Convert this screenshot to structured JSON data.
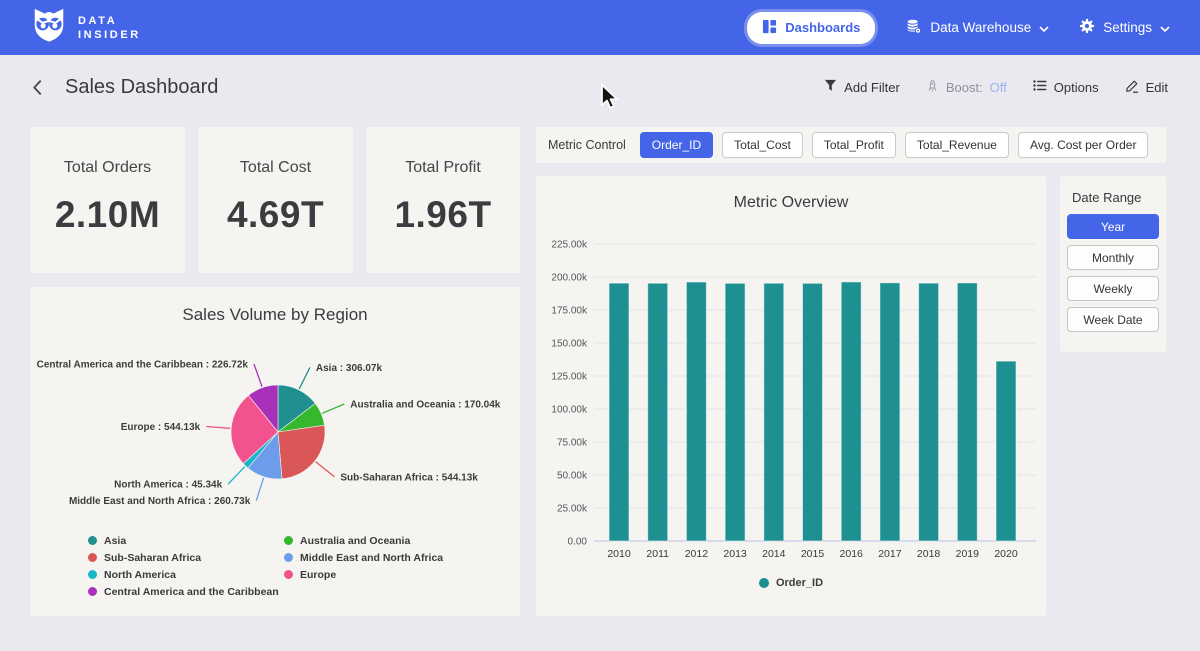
{
  "navbar": {
    "logo_line1": "DATA",
    "logo_line2": "INSIDER",
    "dashboards_label": "Dashboards",
    "data_warehouse_label": "Data Warehouse",
    "settings_label": "Settings"
  },
  "header": {
    "title": "Sales Dashboard",
    "add_filter_label": "Add Filter",
    "boost_label": "Boost:",
    "boost_state": "Off",
    "options_label": "Options",
    "edit_label": "Edit"
  },
  "kpis": [
    {
      "label": "Total Orders",
      "value": "2.10M"
    },
    {
      "label": "Total Cost",
      "value": "4.69T"
    },
    {
      "label": "Total Profit",
      "value": "1.96T"
    }
  ],
  "metric_control": {
    "label": "Metric Control",
    "options": [
      {
        "label": "Order_ID",
        "selected": true
      },
      {
        "label": "Total_Cost",
        "selected": false
      },
      {
        "label": "Total_Profit",
        "selected": false
      },
      {
        "label": "Total_Revenue",
        "selected": false
      },
      {
        "label": "Avg. Cost per Order",
        "selected": false
      }
    ]
  },
  "date_range": {
    "label": "Date Range",
    "options": [
      {
        "label": "Year",
        "selected": true
      },
      {
        "label": "Monthly",
        "selected": false
      },
      {
        "label": "Weekly",
        "selected": false
      },
      {
        "label": "Week Date",
        "selected": false
      }
    ]
  },
  "colors": {
    "accent_blue": "#4565e8",
    "page_bg": "#e9e9ef",
    "card_bg": "#f5f4f1",
    "bar_teal": "#1f9092"
  },
  "chart_data": [
    {
      "type": "pie",
      "title": "Sales Volume by Region",
      "unit": "k",
      "slices": [
        {
          "label": "Asia",
          "value": 306.07,
          "color": "#208f8f"
        },
        {
          "label": "Australia and Oceania",
          "value": 170.04,
          "color": "#35b82e"
        },
        {
          "label": "Sub-Saharan Africa",
          "value": 544.13,
          "color": "#d95757"
        },
        {
          "label": "Middle East and North Africa",
          "value": 260.73,
          "color": "#6d9ceb"
        },
        {
          "label": "North America",
          "value": 45.34,
          "color": "#17b6c9"
        },
        {
          "label": "Europe",
          "value": 544.13,
          "color": "#f2538f"
        },
        {
          "label": "Central America and the Caribbean",
          "value": 226.72,
          "color": "#a930b8"
        }
      ],
      "legend_order": [
        "Asia",
        "Sub-Saharan Africa",
        "North America",
        "Central America and the Caribbean",
        "Australia and Oceania",
        "Middle East and North Africa",
        "Europe"
      ],
      "legend_position": "bottom"
    },
    {
      "type": "bar",
      "title": "Metric Overview",
      "categories": [
        "2010",
        "2011",
        "2012",
        "2013",
        "2014",
        "2015",
        "2016",
        "2017",
        "2018",
        "2019",
        "2020"
      ],
      "series": [
        {
          "name": "Order_ID",
          "color": "#1f9092",
          "values": [
            195.4,
            195.3,
            196.2,
            195.2,
            195.3,
            195.2,
            196.3,
            195.6,
            195.4,
            195.5,
            136.3
          ]
        }
      ],
      "unit": "k",
      "ylim": [
        0,
        225
      ],
      "ytick_step": 25,
      "yticks": [
        "0.00",
        "25.00k",
        "50.00k",
        "75.00k",
        "100.00k",
        "125.00k",
        "150.00k",
        "175.00k",
        "200.00k",
        "225.00k"
      ],
      "grid": "horizontal",
      "legend_position": "bottom"
    }
  ]
}
